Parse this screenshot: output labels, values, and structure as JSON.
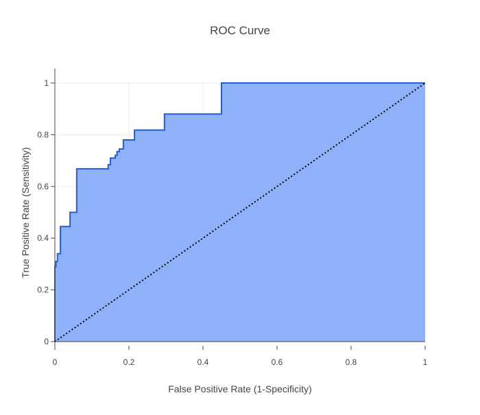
{
  "chart_data": {
    "type": "area",
    "title": "ROC Curve",
    "xlabel": "False Positive Rate (1-Specificity)",
    "ylabel": "True Positive Rate (Sensitivity)",
    "xlim": [
      0,
      1
    ],
    "ylim": [
      0,
      1
    ],
    "x_ticks": [
      0,
      0.2,
      0.4,
      0.6,
      0.8,
      1
    ],
    "x_tick_labels": [
      "0",
      "0.2",
      "0.4",
      "0.6",
      "0.8",
      "1"
    ],
    "y_ticks": [
      0,
      0.2,
      0.4,
      0.6,
      0.8,
      1
    ],
    "y_tick_labels": [
      "0",
      "0.2",
      "0.4",
      "0.6",
      "0.8",
      "1"
    ],
    "grid": true,
    "legend": "none",
    "series": [
      {
        "style": "step-line-with-fill",
        "color": "#1f5fd6",
        "fill_color": "#8eb1fa",
        "x": [
          0,
          0,
          0.003,
          0.003,
          0.007,
          0.007,
          0.015,
          0.015,
          0.041,
          0.041,
          0.059,
          0.059,
          0.144,
          0.144,
          0.15,
          0.15,
          0.163,
          0.163,
          0.168,
          0.168,
          0.174,
          0.174,
          0.185,
          0.185,
          0.215,
          0.215,
          0.296,
          0.296,
          0.45,
          0.45,
          1
        ],
        "y": [
          0,
          0.29,
          0.29,
          0.31,
          0.31,
          0.34,
          0.34,
          0.445,
          0.445,
          0.5,
          0.5,
          0.668,
          0.668,
          0.684,
          0.684,
          0.71,
          0.71,
          0.72,
          0.72,
          0.735,
          0.735,
          0.745,
          0.745,
          0.78,
          0.78,
          0.818,
          0.818,
          0.88,
          0.88,
          1,
          1
        ]
      },
      {
        "style": "dotted-line",
        "color": "#000000",
        "x": [
          0,
          1
        ],
        "y": [
          0,
          1
        ]
      }
    ]
  }
}
